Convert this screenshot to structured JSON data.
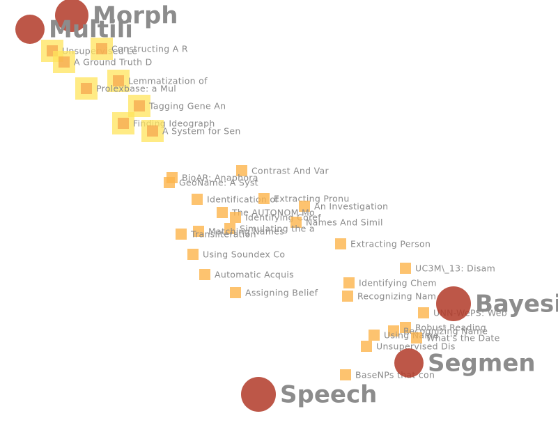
{
  "topics": [
    {
      "label": "Morph"
    },
    {
      "label": "Multili"
    },
    {
      "label": "Bayesi"
    },
    {
      "label": "Segmen"
    },
    {
      "label": "Speech"
    }
  ],
  "documents": [
    {
      "label": "Unsupervised Le",
      "highlighted": true
    },
    {
      "label": "Constructing A R",
      "highlighted": true
    },
    {
      "label": "A Ground Truth D",
      "highlighted": true
    },
    {
      "label": "Lemmatization of",
      "highlighted": true
    },
    {
      "label": "Prolexbase: a Mul",
      "highlighted": true
    },
    {
      "label": "Tagging Gene An",
      "highlighted": true
    },
    {
      "label": "Finding Ideograph",
      "highlighted": true
    },
    {
      "label": "A System for Sen",
      "highlighted": true
    },
    {
      "label": "Contrast And Var",
      "highlighted": false
    },
    {
      "label": "BioAR: Anaphora",
      "highlighted": false
    },
    {
      "label": "GeoName: A Syst",
      "highlighted": false
    },
    {
      "label": "Identification of",
      "highlighted": false
    },
    {
      "label": "Extracting Pronu",
      "highlighted": false
    },
    {
      "label": "An Investigation",
      "highlighted": false
    },
    {
      "label": "The AUTONOM Mo",
      "highlighted": false
    },
    {
      "label": "Identifying Coref",
      "highlighted": false
    },
    {
      "label": "Names And Simil",
      "highlighted": false
    },
    {
      "label": "Simulating the a",
      "highlighted": false
    },
    {
      "label": "Matching Names",
      "highlighted": false
    },
    {
      "label": "Transliteration",
      "highlighted": false
    },
    {
      "label": "Extracting Person",
      "highlighted": false
    },
    {
      "label": "Using Soundex Co",
      "highlighted": false
    },
    {
      "label": "UC3M\\_13: Disam",
      "highlighted": false
    },
    {
      "label": "Automatic Acquis",
      "highlighted": false
    },
    {
      "label": "Identifying Chem",
      "highlighted": false
    },
    {
      "label": "Assigning Belief",
      "highlighted": false
    },
    {
      "label": "Recognizing Nam",
      "highlighted": false
    },
    {
      "label": "UNN-WePS: Web",
      "highlighted": false
    },
    {
      "label": "Robust Reading",
      "highlighted": false
    },
    {
      "label": "Recognizing Name",
      "highlighted": false
    },
    {
      "label": "Using Name",
      "highlighted": false
    },
    {
      "label": "What's the Date",
      "highlighted": false
    },
    {
      "label": "Unsupervised Dis",
      "highlighted": false
    },
    {
      "label": "BaseNPs that con",
      "highlighted": false
    }
  ]
}
